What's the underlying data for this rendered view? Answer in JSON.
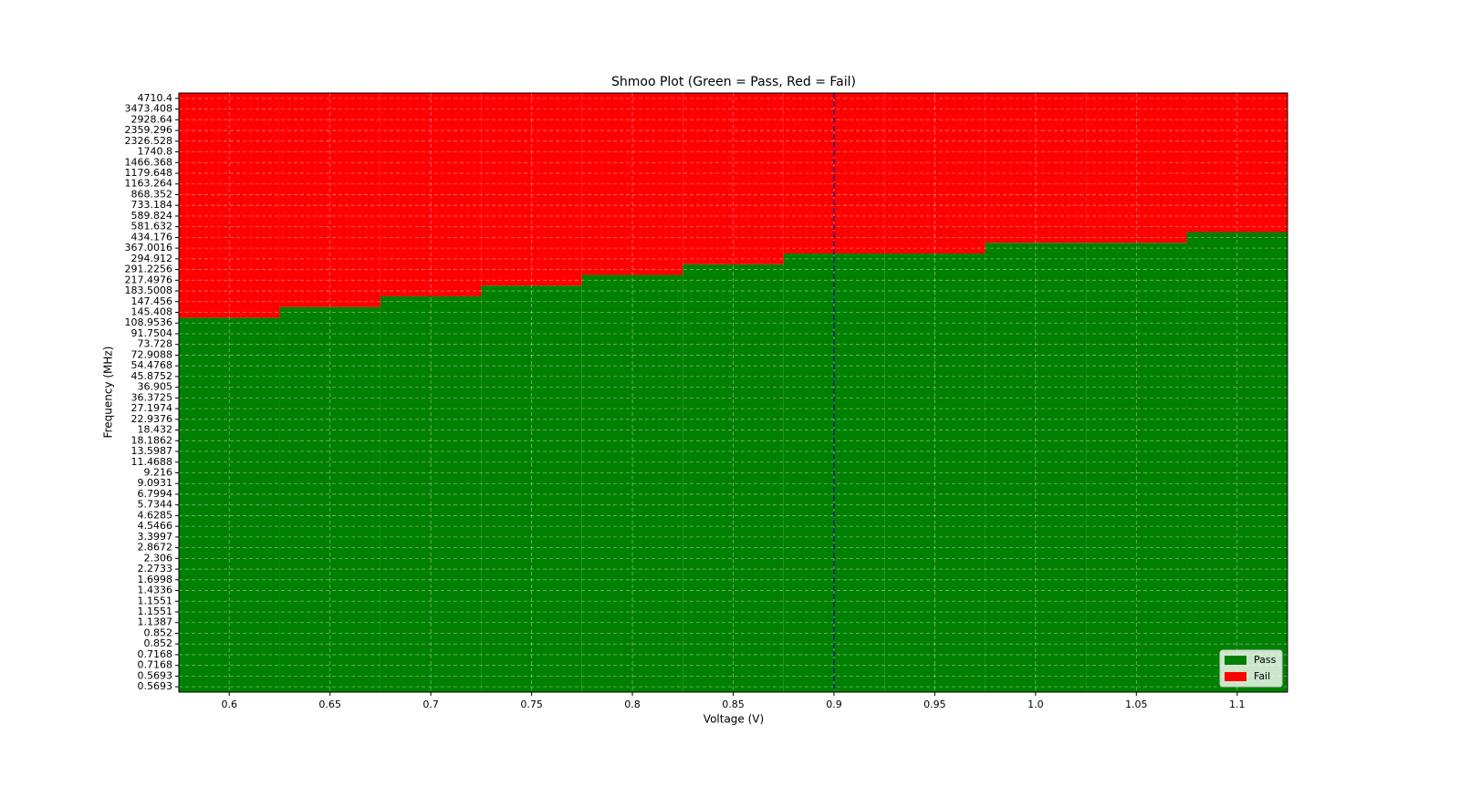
{
  "chart_data": {
    "type": "shmoo",
    "title": "Shmoo Plot (Green = Pass, Red = Fail)",
    "x_label": "Voltage (V)",
    "y_label": "Frequency (MHz)",
    "x": [
      0.6,
      0.65,
      0.7,
      0.75,
      0.8,
      0.85,
      0.9,
      0.95,
      1,
      1.05,
      1.1
    ],
    "xlim": [
      0.575,
      1.125
    ],
    "xticks": [
      0.6,
      0.65,
      0.7,
      0.75,
      0.8,
      0.85,
      0.9,
      0.95,
      {
        "value": 1,
        "label": "1.0"
      },
      1.05,
      1.1
    ],
    "categories": [
      0.5693,
      0.5693,
      0.7168,
      0.7168,
      0.852,
      0.852,
      1.1387,
      1.1551,
      1.1551,
      1.4336,
      1.6998,
      2.2733,
      2.306,
      2.8672,
      3.3997,
      4.5466,
      4.6285,
      5.7344,
      6.7994,
      9.0931,
      9.216,
      11.4688,
      13.5987,
      18.1862,
      18.432,
      22.9376,
      27.1974,
      36.3725,
      36.905,
      45.8752,
      54.4768,
      72.9088,
      73.728,
      91.7504,
      108.9536,
      145.408,
      147.456,
      183.5008,
      217.4976,
      291.2256,
      294.912,
      367.0016,
      434.176,
      581.632,
      589.824,
      733.184,
      868.352,
      1163.264,
      1179.648,
      1466.368,
      1740.8,
      2326.528,
      2359.296,
      2928.64,
      3473.408,
      4710.4
    ],
    "pass_counts": [
      35,
      36,
      37,
      38,
      39,
      40,
      41,
      41,
      42,
      42,
      43
    ],
    "series": [
      {
        "name": "Pass",
        "color": "#008000"
      },
      {
        "name": "Fail",
        "color": "#ff0000"
      }
    ],
    "vline": 0.9,
    "vline_color": "#1a1a8c",
    "grid": true,
    "legend": "lower right"
  }
}
